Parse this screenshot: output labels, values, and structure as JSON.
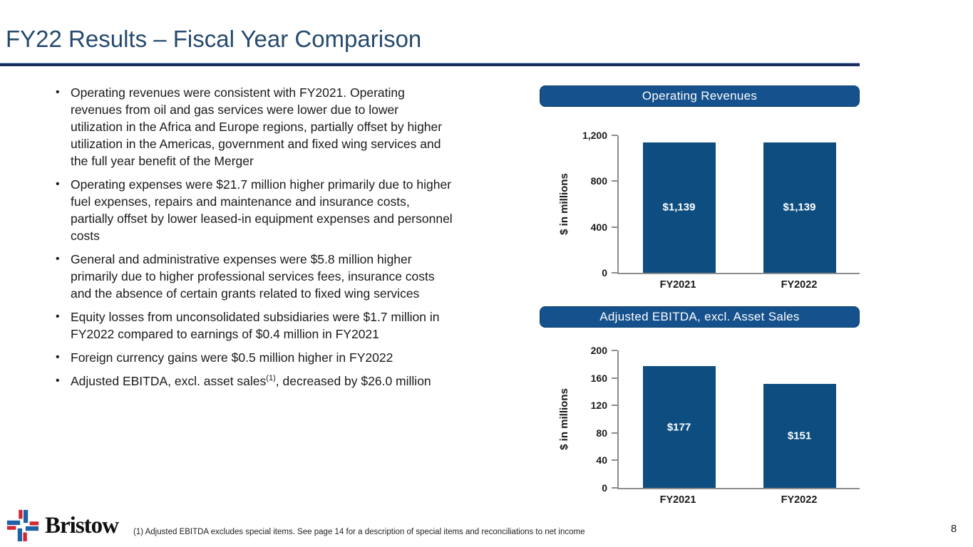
{
  "slide": {
    "title": "FY22 Results – Fiscal Year Comparison"
  },
  "bullets": [
    {
      "segments": [
        {
          "t": "Operating revenues were consistent with FY2021. Operating revenues from oil and gas services were  lower due to lower utilization in the Africa and Europe regions, partially offset by higher utilization in the Americas, government and fixed wing services and the full year benefit of the Merger"
        }
      ]
    },
    {
      "segments": [
        {
          "t": "Operating expenses were $21.7 million higher primarily due to higher fuel expenses, repairs and maintenance and insurance costs, partially offset by lower leased-in equipment expenses and personnel costs"
        }
      ]
    },
    {
      "segments": [
        {
          "t": "General and administrative expenses were $5.8 million higher primarily due to higher professional services fees, insurance costs and the absence of certain grants related to fixed wing services"
        }
      ]
    },
    {
      "segments": [
        {
          "t": "Equity losses from unconsolidated subsidiaries were $1.7 million in FY2022 compared to earnings of $0.4 million in FY2021"
        }
      ]
    },
    {
      "segments": [
        {
          "t": "Foreign currency gains were $0.5 million higher in FY2022"
        }
      ]
    },
    {
      "segments": [
        {
          "t": "Adjusted EBITDA, excl. asset sales"
        },
        {
          "t": "(1)",
          "sup": true
        },
        {
          "t": ", decreased by $26.0 million"
        }
      ]
    }
  ],
  "chart_data": [
    {
      "type": "bar",
      "title": "Operating Revenues",
      "categories": [
        "FY2021",
        "FY2022"
      ],
      "values": [
        1139,
        1139
      ],
      "value_labels": [
        "$1,139",
        "$1,139"
      ],
      "xlabel": "",
      "ylabel": "$ in millions",
      "ylim": [
        0,
        1200
      ],
      "yticks": [
        0,
        400,
        800,
        1200
      ],
      "ytick_labels": [
        "0",
        "400",
        "800",
        "1,200"
      ],
      "grid": false,
      "legend": "none"
    },
    {
      "type": "bar",
      "title": "Adjusted EBITDA, excl. Asset Sales",
      "categories": [
        "FY2021",
        "FY2022"
      ],
      "values": [
        177,
        151
      ],
      "value_labels": [
        "$177",
        "$151"
      ],
      "xlabel": "",
      "ylabel": "$ in millions",
      "ylim": [
        0,
        200
      ],
      "yticks": [
        0,
        40,
        80,
        120,
        160,
        200
      ],
      "ytick_labels": [
        "0",
        "40",
        "80",
        "120",
        "160",
        "200"
      ],
      "grid": false,
      "legend": "none"
    }
  ],
  "footer": {
    "logo_text": "Bristow",
    "footnote": "(1)  Adjusted EBITDA excludes special items. See page 14 for a description of special items and reconciliations to net income",
    "page_number": "8"
  },
  "colors": {
    "accent_banner": "#15518c",
    "bar": "#0d4d80",
    "title_text": "#254a6e",
    "rule_dark": "#1c2e60",
    "logo_red": "#d22630",
    "logo_blue": "#1d62a5"
  }
}
